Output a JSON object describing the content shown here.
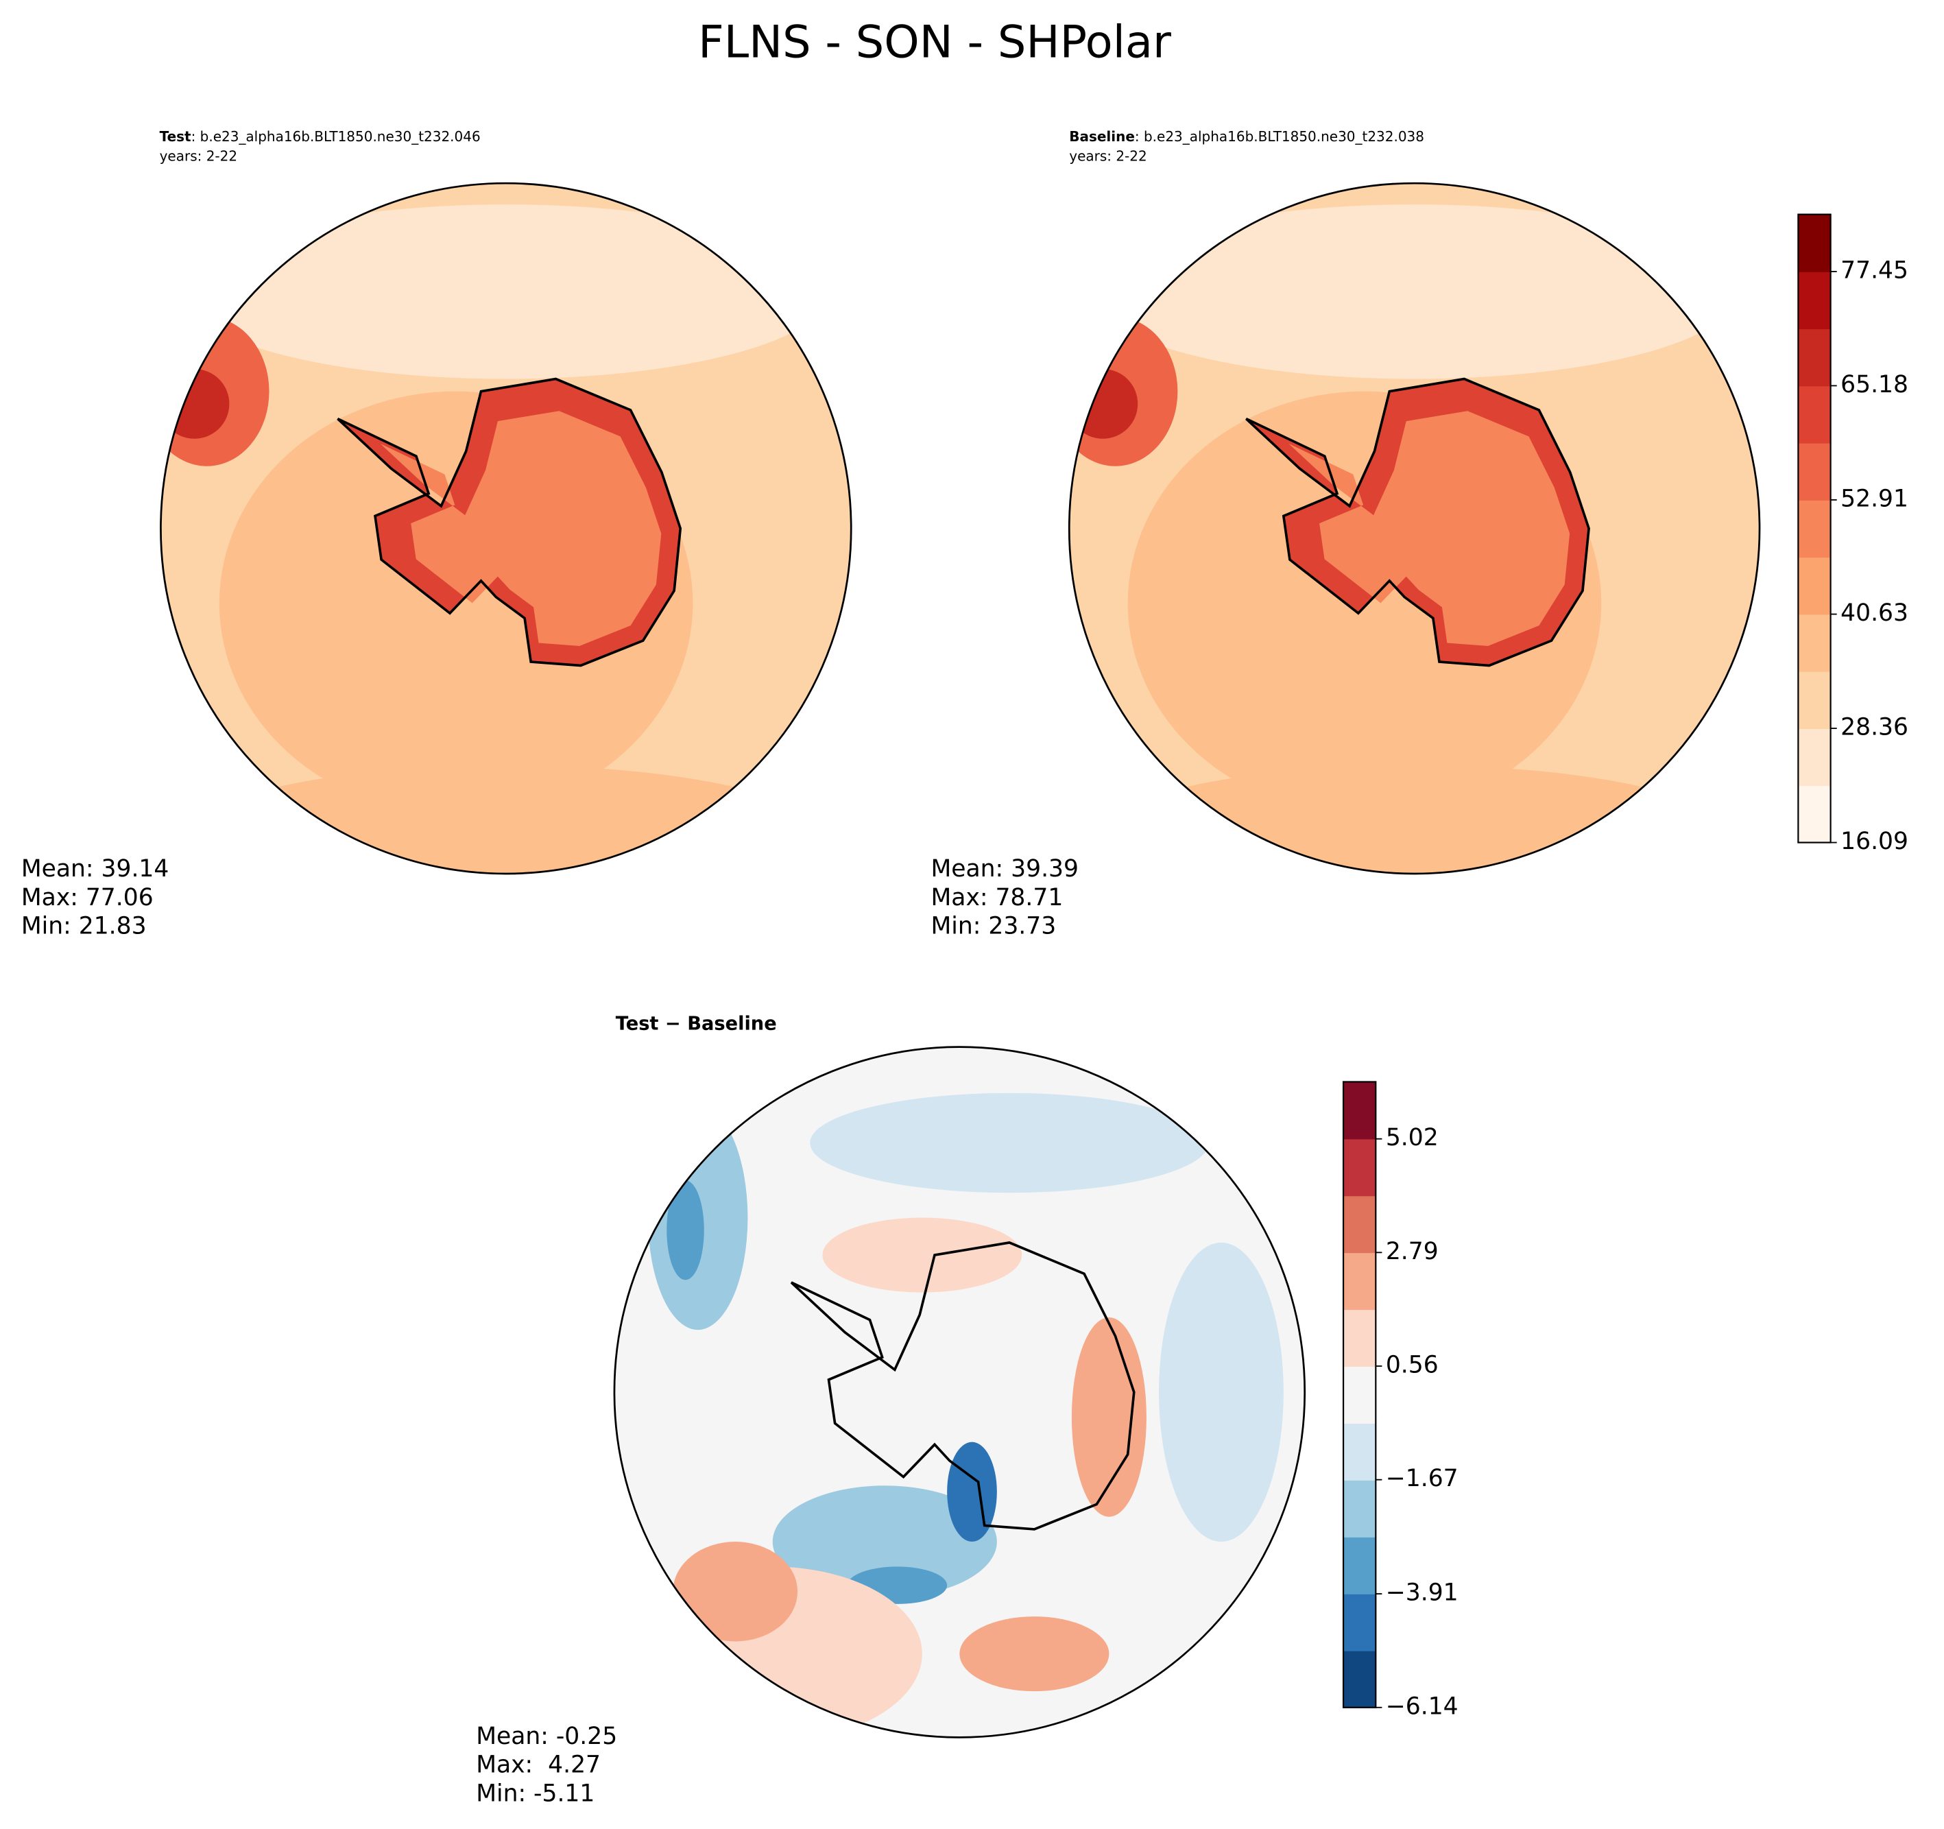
{
  "chart_data": [
    {
      "type": "map",
      "title": "FLNS - SON - SHPolar",
      "label": "Test",
      "case": ": b.e23_alpha16b.BLT1850.ne30_t232.046",
      "years": "years: 2-22",
      "stats": [
        "Mean: 39.14",
        "Max: 77.06",
        "Min: 21.83"
      ]
    },
    {
      "type": "map",
      "label": "Baseline",
      "case": ": b.e23_alpha16b.BLT1850.ne30_t232.038",
      "years": "years: 2-22",
      "stats": [
        "Mean: 39.39",
        "Max: 78.71",
        "Min: 23.73"
      ],
      "colorbar": {
        "ylim": [
          16.09,
          83.59
        ],
        "yticks": [
          16.09,
          28.36,
          40.63,
          52.91,
          65.18,
          77.45
        ],
        "colors": [
          "#fff5eb",
          "#fee6ce",
          "#fdd3a8",
          "#fdc08c",
          "#fca46e",
          "#f6855a",
          "#ed6447",
          "#dd4233",
          "#c82a22",
          "#b10f0f",
          "#800000"
        ]
      }
    },
    {
      "type": "map",
      "title": "Test − Baseline",
      "stats": [
        "Mean: -0.25",
        "Max:  4.27",
        "Min: -5.11"
      ],
      "colorbar": {
        "ylim": [
          -6.14,
          6.14
        ],
        "yticks": [
          {
            "value": -6.14,
            "label": "−6.14"
          },
          {
            "value": -3.91,
            "label": "−3.91"
          },
          {
            "value": -1.67,
            "label": "−1.67"
          },
          0.56,
          2.79,
          5.02
        ],
        "colors": [
          "#114781",
          "#2c73b5",
          "#569fcb",
          "#9ccae1",
          "#d2e5f0",
          "#f5f5f5",
          "#fbd8c8",
          "#f5a989",
          "#df735c",
          "#c1333a",
          "#820c25"
        ]
      }
    }
  ]
}
